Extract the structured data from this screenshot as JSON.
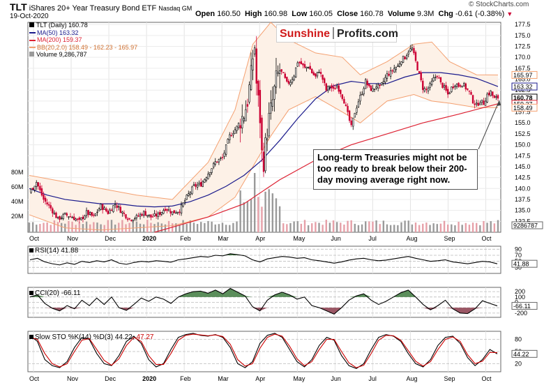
{
  "header": {
    "symbol": "TLT",
    "name": "iShares 20+ Year Treasury Bond ETF",
    "exchange": "Nasdaq GM",
    "date": "19-Oct-2020",
    "open_label": "Open",
    "open": "160.50",
    "high_label": "High",
    "high": "160.98",
    "low_label": "Low",
    "low": "160.05",
    "close_label": "Close",
    "close": "160.78",
    "volume_label": "Volume",
    "volume": "9.3M",
    "chg_label": "Chg",
    "chg": "-0.61 (-0.38%)",
    "watermark": "© StockCharts.com"
  },
  "logo": {
    "part1": "Sunshine",
    "part2": "Profits.com"
  },
  "annotation": "Long-term Treasuries might not be too ready to break below their 200-day moving average right now.",
  "colors": {
    "up": "#000000",
    "down": "#cc0033",
    "ma50": "#1a1a8c",
    "ma200": "#dd2233",
    "bb": "#f4a070",
    "volume": "#9a9a9a",
    "volume_down": "#e6a0a8",
    "rsi_fill": "#2d6b2d",
    "cci_pos": "#3e7a3e",
    "cci_neg": "#8a3a4a",
    "sto_k": "#000000",
    "sto_d": "#cc0000"
  },
  "chart_data": [
    {
      "type": "candlestick",
      "legend": [
        "TLT (Daily) 160.78",
        "MA(50) 163.32",
        "MA(200) 159.37",
        "BB(20,2.0) 158.49 - 162.23 - 165.97",
        "Volume 9,286,787"
      ],
      "x_labels": [
        "Oct",
        "Nov",
        "Dec",
        "2020",
        "Feb",
        "Mar",
        "Apr",
        "May",
        "Jun",
        "Jul",
        "Aug",
        "Sep",
        "Oct"
      ],
      "ylim": [
        130,
        178
      ],
      "y_ticks": [
        132.5,
        135.0,
        137.5,
        140.0,
        142.5,
        145.0,
        147.5,
        150.0,
        152.5,
        155.0,
        157.5,
        160.0,
        162.5,
        165.0,
        167.5,
        170.0,
        172.5,
        175.0,
        177.5
      ],
      "y_tick_labels": [
        "132.5",
        "135.0",
        "137.5",
        "140.0",
        "142.5",
        "145.0",
        "147.5",
        "150.0",
        "152.5",
        "155.0",
        "157.5",
        "160.0",
        "162.5",
        "165.0",
        "167.5",
        "170.0",
        "172.5",
        "175.0",
        "177.5"
      ],
      "price_flags": [
        {
          "label": "165.97",
          "value": 165.97
        },
        {
          "label": "163.32",
          "value": 163.32
        },
        {
          "label": "160.78",
          "value": 160.78
        },
        {
          "label": "159.37",
          "value": 159.37
        },
        {
          "label": "158.49",
          "value": 158.49
        }
      ],
      "volume_ticks": [
        "80M",
        "60M",
        "40M",
        "20M"
      ],
      "volume_flag": "9286787",
      "close_path": [
        [
          0,
          139.0
        ],
        [
          4,
          141.5
        ],
        [
          8,
          137.5
        ],
        [
          12,
          135.5
        ],
        [
          16,
          133.0
        ],
        [
          20,
          134.0
        ],
        [
          24,
          133.5
        ],
        [
          28,
          132.5
        ],
        [
          32,
          134.5
        ],
        [
          36,
          133.5
        ],
        [
          40,
          136.0
        ],
        [
          44,
          134.5
        ],
        [
          48,
          136.5
        ],
        [
          52,
          134.5
        ],
        [
          56,
          133.0
        ],
        [
          60,
          133.5
        ],
        [
          64,
          134.5
        ],
        [
          68,
          133.5
        ],
        [
          72,
          134.0
        ],
        [
          76,
          135.5
        ],
        [
          80,
          134.5
        ],
        [
          84,
          135.0
        ],
        [
          88,
          138.0
        ],
        [
          92,
          140.5
        ],
        [
          96,
          141.0
        ],
        [
          100,
          143.5
        ],
        [
          104,
          146.0
        ],
        [
          108,
          147.0
        ],
        [
          112,
          152.0
        ],
        [
          116,
          154.0
        ],
        [
          120,
          157.0
        ],
        [
          122,
          160.0
        ],
        [
          124,
          166.0
        ],
        [
          125,
          170.0
        ],
        [
          126,
          172.5
        ],
        [
          127,
          164.0
        ],
        [
          128,
          160.0
        ],
        [
          129,
          156.0
        ],
        [
          130,
          148.0
        ],
        [
          131,
          146.0
        ],
        [
          132,
          150.0
        ],
        [
          134,
          156.0
        ],
        [
          136,
          160.0
        ],
        [
          138,
          165.0
        ],
        [
          140,
          167.0
        ],
        [
          142,
          166.0
        ],
        [
          144,
          164.0
        ],
        [
          146,
          164.5
        ],
        [
          148,
          166.0
        ],
        [
          150,
          169.0
        ],
        [
          152,
          168.5
        ],
        [
          154,
          167.5
        ],
        [
          156,
          168.0
        ],
        [
          158,
          166.5
        ],
        [
          160,
          165.5
        ],
        [
          162,
          167.0
        ],
        [
          164,
          165.0
        ],
        [
          166,
          162.5
        ],
        [
          168,
          163.5
        ],
        [
          170,
          162.5
        ],
        [
          172,
          163.5
        ],
        [
          174,
          162.0
        ],
        [
          176,
          160.0
        ],
        [
          178,
          157.0
        ],
        [
          180,
          154.0
        ],
        [
          182,
          157.5
        ],
        [
          184,
          160.0
        ],
        [
          186,
          162.0
        ],
        [
          188,
          164.5
        ],
        [
          190,
          163.0
        ],
        [
          192,
          162.5
        ],
        [
          194,
          163.5
        ],
        [
          196,
          163.0
        ],
        [
          198,
          164.5
        ],
        [
          200,
          166.0
        ],
        [
          202,
          166.5
        ],
        [
          204,
          167.5
        ],
        [
          206,
          168.0
        ],
        [
          208,
          169.5
        ],
        [
          210,
          170.0
        ],
        [
          212,
          171.5
        ],
        [
          214,
          172.0
        ],
        [
          216,
          169.0
        ],
        [
          218,
          166.0
        ],
        [
          220,
          163.0
        ],
        [
          222,
          162.5
        ],
        [
          224,
          163.5
        ],
        [
          226,
          165.0
        ],
        [
          228,
          166.0
        ],
        [
          230,
          164.0
        ],
        [
          232,
          163.0
        ],
        [
          234,
          161.5
        ],
        [
          236,
          163.0
        ],
        [
          238,
          164.0
        ],
        [
          240,
          163.5
        ],
        [
          242,
          164.0
        ],
        [
          244,
          163.0
        ],
        [
          246,
          162.0
        ],
        [
          248,
          160.0
        ],
        [
          250,
          159.0
        ],
        [
          252,
          160.0
        ],
        [
          254,
          159.5
        ],
        [
          256,
          161.5
        ],
        [
          258,
          162.0
        ],
        [
          260,
          160.5
        ],
        [
          262,
          160.78
        ]
      ],
      "ma50": [
        [
          0,
          140.0
        ],
        [
          10,
          138.5
        ],
        [
          20,
          137.5
        ],
        [
          30,
          137.0
        ],
        [
          40,
          136.5
        ],
        [
          50,
          136.5
        ],
        [
          60,
          136.0
        ],
        [
          70,
          135.8
        ],
        [
          80,
          136.0
        ],
        [
          90,
          137.0
        ],
        [
          100,
          138.5
        ],
        [
          110,
          140.5
        ],
        [
          120,
          143.0
        ],
        [
          130,
          146.5
        ],
        [
          140,
          151.0
        ],
        [
          150,
          156.0
        ],
        [
          160,
          160.5
        ],
        [
          170,
          163.5
        ],
        [
          180,
          164.5
        ],
        [
          190,
          164.0
        ],
        [
          200,
          164.0
        ],
        [
          210,
          165.5
        ],
        [
          220,
          166.5
        ],
        [
          230,
          166.5
        ],
        [
          240,
          166.0
        ],
        [
          250,
          165.2
        ],
        [
          262,
          163.32
        ]
      ],
      "ma200": [
        [
          70,
          130.0
        ],
        [
          100,
          133.5
        ],
        [
          120,
          136.5
        ],
        [
          140,
          142.0
        ],
        [
          160,
          146.5
        ],
        [
          180,
          150.0
        ],
        [
          200,
          152.5
        ],
        [
          220,
          155.0
        ],
        [
          240,
          157.0
        ],
        [
          262,
          159.37
        ]
      ],
      "bb_upper": [
        [
          0,
          143.0
        ],
        [
          20,
          141.5
        ],
        [
          40,
          140.0
        ],
        [
          60,
          138.5
        ],
        [
          80,
          137.5
        ],
        [
          100,
          146.0
        ],
        [
          115,
          158.0
        ],
        [
          125,
          173.0
        ],
        [
          135,
          178.0
        ],
        [
          145,
          174.0
        ],
        [
          160,
          171.0
        ],
        [
          175,
          170.0
        ],
        [
          185,
          166.0
        ],
        [
          200,
          169.0
        ],
        [
          215,
          173.0
        ],
        [
          225,
          173.5
        ],
        [
          235,
          169.0
        ],
        [
          250,
          166.0
        ],
        [
          262,
          165.97
        ]
      ],
      "bb_lower": [
        [
          0,
          134.0
        ],
        [
          20,
          131.0
        ],
        [
          40,
          130.5
        ],
        [
          60,
          131.0
        ],
        [
          80,
          131.5
        ],
        [
          100,
          133.5
        ],
        [
          115,
          138.0
        ],
        [
          125,
          145.0
        ],
        [
          135,
          152.0
        ],
        [
          145,
          158.0
        ],
        [
          160,
          161.0
        ],
        [
          175,
          157.5
        ],
        [
          185,
          155.0
        ],
        [
          200,
          160.0
        ],
        [
          215,
          161.5
        ],
        [
          225,
          160.0
        ],
        [
          235,
          159.5
        ],
        [
          250,
          158.5
        ],
        [
          262,
          158.49
        ]
      ]
    },
    {
      "type": "line",
      "title": "RSI(14) 41.88",
      "ylim": [
        10,
        100
      ],
      "y_ticks": [
        30,
        50,
        70,
        90
      ],
      "y_tick_labels": [
        "30",
        "50",
        "70",
        "90"
      ],
      "value_flag": "41.88",
      "values": [
        55,
        60,
        48,
        42,
        38,
        45,
        40,
        50,
        46,
        52,
        48,
        55,
        44,
        40,
        46,
        50,
        48,
        52,
        50,
        47,
        55,
        58,
        62,
        66,
        64,
        70,
        68,
        75,
        72,
        68,
        55,
        48,
        58,
        62,
        66,
        64,
        60,
        62,
        55,
        52,
        48,
        44,
        48,
        54,
        58,
        60,
        55,
        52,
        54,
        58,
        62,
        66,
        60,
        55,
        50,
        52,
        55,
        48,
        45,
        42,
        46,
        50,
        48,
        41.88
      ]
    },
    {
      "type": "line",
      "title": "CCI(20) -66.11",
      "ylim": [
        -280,
        280
      ],
      "y_ticks": [
        -200,
        -100,
        0,
        100,
        200
      ],
      "y_tick_labels": [
        "-200",
        "-100",
        "0",
        "100",
        "200"
      ],
      "value_flag": "-66.11",
      "values": [
        100,
        140,
        -20,
        -110,
        -160,
        -60,
        -120,
        40,
        -60,
        80,
        -40,
        100,
        -100,
        -150,
        -40,
        80,
        20,
        100,
        60,
        -20,
        100,
        160,
        200,
        210,
        170,
        230,
        160,
        260,
        190,
        120,
        -80,
        -160,
        40,
        140,
        190,
        140,
        60,
        100,
        -60,
        -100,
        -160,
        -220,
        -100,
        40,
        120,
        160,
        40,
        -40,
        20,
        100,
        180,
        230,
        100,
        -40,
        -140,
        -60,
        40,
        -120,
        -200,
        -210,
        -120,
        30,
        -20,
        -66.11
      ]
    },
    {
      "type": "line",
      "title": "Slow STO %K(14) %D(3) 44.22, 47.27",
      "title_k": "Slow STO %K(14) %D(3) 44.22,",
      "title_d": "47.27",
      "ylim": [
        0,
        100
      ],
      "y_ticks": [
        20,
        50,
        80
      ],
      "y_tick_labels": [
        "20",
        "50",
        "80"
      ],
      "value_flag": "44.22",
      "k": [
        90,
        75,
        30,
        15,
        10,
        25,
        60,
        85,
        80,
        45,
        20,
        15,
        40,
        75,
        88,
        70,
        30,
        12,
        20,
        55,
        85,
        92,
        95,
        90,
        88,
        92,
        85,
        60,
        20,
        10,
        25,
        70,
        90,
        95,
        85,
        55,
        25,
        12,
        30,
        65,
        85,
        78,
        40,
        15,
        8,
        20,
        55,
        85,
        92,
        88,
        75,
        45,
        20,
        12,
        30,
        65,
        85,
        88,
        70,
        35,
        15,
        30,
        55,
        44.22
      ],
      "d": [
        85,
        80,
        45,
        20,
        12,
        20,
        50,
        78,
        82,
        55,
        28,
        16,
        32,
        65,
        85,
        75,
        40,
        18,
        18,
        45,
        78,
        90,
        93,
        91,
        89,
        91,
        87,
        68,
        30,
        14,
        20,
        58,
        85,
        93,
        88,
        63,
        32,
        15,
        25,
        55,
        80,
        80,
        50,
        22,
        10,
        16,
        45,
        78,
        90,
        89,
        78,
        52,
        26,
        14,
        25,
        55,
        80,
        86,
        75,
        42,
        20,
        26,
        48,
        47.27
      ]
    }
  ]
}
